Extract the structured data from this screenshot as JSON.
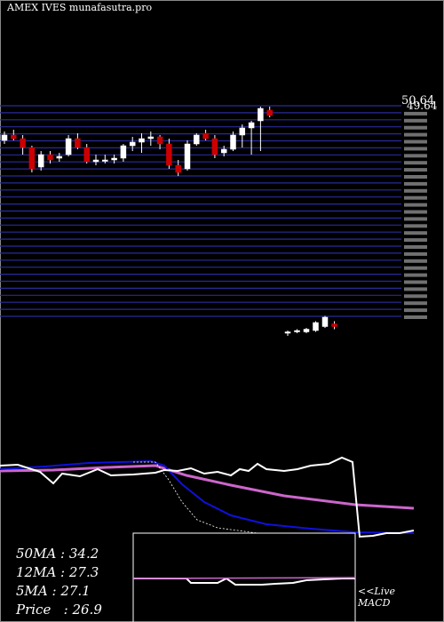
{
  "header": {
    "title": "AMEX  IVES munafasutra.pro"
  },
  "price_panel": {
    "top_price_label": "50.64",
    "top_price_label_overlap": "49.64"
  },
  "stats": {
    "ma50": "50MA : 34.2",
    "ma12": "12MA : 27.3",
    "ma5": "5MA : 27.1",
    "price": "Price   : 26.9"
  },
  "macd": {
    "live_label": "<<Live",
    "macd_label": "MACD"
  },
  "colors": {
    "background": "#000000",
    "grid_line": "#2a2a9a",
    "up_candle": "#ffffff",
    "down_candle": "#cc0000",
    "ma_blue": "#1010dd",
    "ma_magenta": "#cc66cc",
    "price_line": "#ffffff",
    "macd_line": "#ffffff",
    "signal_line": "#cc66cc"
  },
  "chart_data": {
    "type": "candlestick",
    "candles_upper": [
      {
        "o": 48.8,
        "h": 49.3,
        "l": 48.6,
        "c": 49.1
      },
      {
        "o": 49.1,
        "h": 49.4,
        "l": 48.8,
        "c": 48.9
      },
      {
        "o": 48.9,
        "h": 49.1,
        "l": 48.0,
        "c": 48.4
      },
      {
        "o": 48.4,
        "h": 48.5,
        "l": 47.0,
        "c": 47.2
      },
      {
        "o": 47.3,
        "h": 48.2,
        "l": 47.1,
        "c": 48.0
      },
      {
        "o": 48.0,
        "h": 48.2,
        "l": 47.5,
        "c": 47.7
      },
      {
        "o": 47.8,
        "h": 48.1,
        "l": 47.6,
        "c": 47.9
      },
      {
        "o": 48.0,
        "h": 49.1,
        "l": 47.9,
        "c": 48.9
      },
      {
        "o": 48.9,
        "h": 49.2,
        "l": 48.3,
        "c": 48.4
      },
      {
        "o": 48.4,
        "h": 48.6,
        "l": 47.5,
        "c": 47.6
      },
      {
        "o": 47.6,
        "h": 48.0,
        "l": 47.4,
        "c": 47.7
      },
      {
        "o": 47.7,
        "h": 48.0,
        "l": 47.5,
        "c": 47.7
      },
      {
        "o": 47.7,
        "h": 48.0,
        "l": 47.5,
        "c": 47.8
      },
      {
        "o": 47.8,
        "h": 48.6,
        "l": 47.6,
        "c": 48.5
      },
      {
        "o": 48.5,
        "h": 49.0,
        "l": 48.2,
        "c": 48.7
      },
      {
        "o": 48.7,
        "h": 49.2,
        "l": 48.1,
        "c": 48.9
      },
      {
        "o": 48.9,
        "h": 49.3,
        "l": 48.5,
        "c": 49.0
      },
      {
        "o": 49.0,
        "h": 49.1,
        "l": 48.3,
        "c": 48.6
      },
      {
        "o": 48.6,
        "h": 48.9,
        "l": 47.2,
        "c": 47.4
      },
      {
        "o": 47.4,
        "h": 47.7,
        "l": 46.8,
        "c": 47.0
      },
      {
        "o": 47.2,
        "h": 48.8,
        "l": 47.1,
        "c": 48.6
      },
      {
        "o": 48.6,
        "h": 49.2,
        "l": 48.5,
        "c": 49.1
      },
      {
        "o": 49.2,
        "h": 49.4,
        "l": 48.8,
        "c": 48.9
      },
      {
        "o": 48.9,
        "h": 49.1,
        "l": 47.8,
        "c": 48.0
      },
      {
        "o": 48.1,
        "h": 48.5,
        "l": 47.9,
        "c": 48.3
      },
      {
        "o": 48.3,
        "h": 49.3,
        "l": 48.2,
        "c": 49.1
      },
      {
        "o": 49.1,
        "h": 49.7,
        "l": 48.4,
        "c": 49.5
      },
      {
        "o": 49.5,
        "h": 49.9,
        "l": 48.0,
        "c": 49.8
      },
      {
        "o": 49.9,
        "h": 50.7,
        "l": 48.2,
        "c": 50.6
      },
      {
        "o": 50.5,
        "h": 50.7,
        "l": 50.1,
        "c": 50.2
      }
    ],
    "candles_lower": [
      {
        "o": 26.6,
        "h": 26.8,
        "l": 26.4,
        "c": 26.7
      },
      {
        "o": 26.7,
        "h": 26.9,
        "l": 26.6,
        "c": 26.8
      },
      {
        "o": 26.7,
        "h": 27.0,
        "l": 26.6,
        "c": 26.9
      },
      {
        "o": 26.8,
        "h": 27.5,
        "l": 26.7,
        "c": 27.4
      },
      {
        "o": 27.1,
        "h": 27.9,
        "l": 27.0,
        "c": 27.8
      },
      {
        "o": 27.3,
        "h": 27.5,
        "l": 26.9,
        "c": 27.1
      }
    ],
    "ma_lines": [
      "50MA",
      "12MA",
      "5MA",
      "Price"
    ],
    "macd_series": [
      "MACD",
      "signal"
    ]
  }
}
